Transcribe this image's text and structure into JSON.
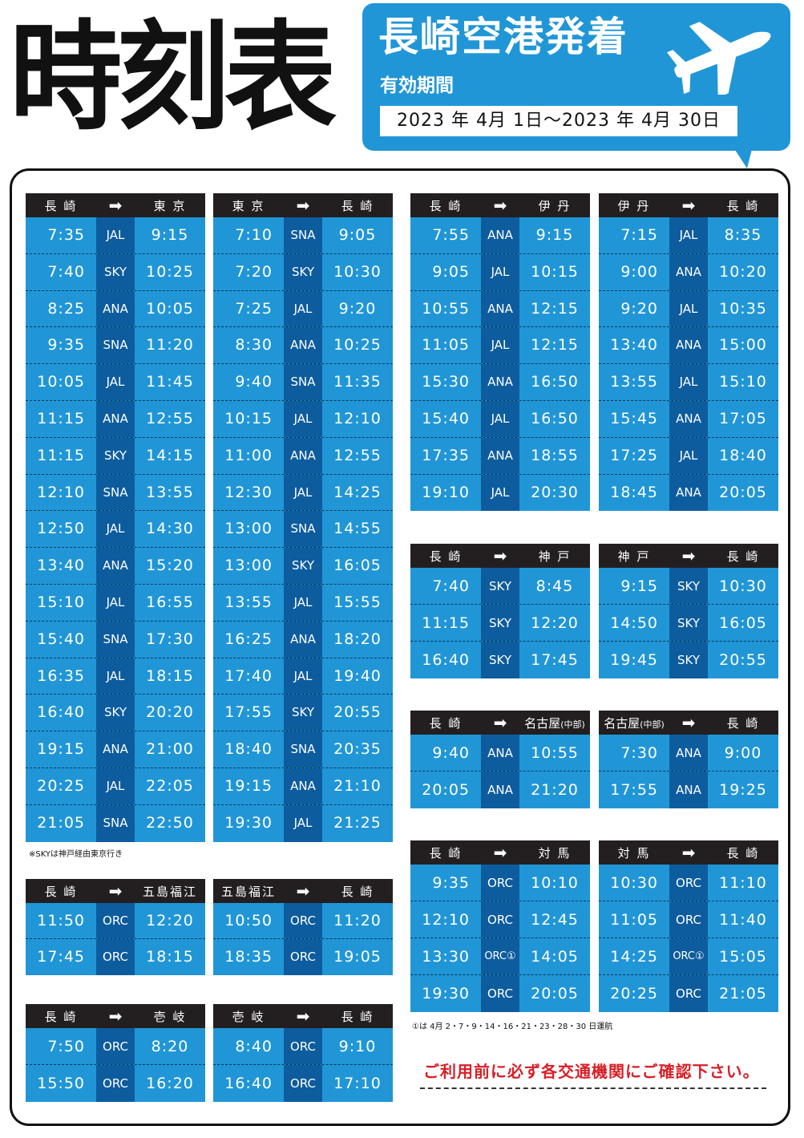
{
  "header": {
    "title": "時刻表",
    "airport_title": "長崎空港発着",
    "period_label": "有効期間",
    "period": "2023 年 4月 1日～2023 年 4月 30日",
    "icon": "airplane-icon"
  },
  "colors": {
    "row_bg": "#2196d6",
    "airline_col": "#0d5c9e",
    "head_bg": "#231f20",
    "warn": "#d81f26"
  },
  "arrow": "➡",
  "tables": [
    {
      "from": "長 崎",
      "to": "東 京",
      "rows": [
        {
          "dep": "7:35",
          "airline": "JAL",
          "arr": "9:15"
        },
        {
          "dep": "7:40",
          "airline": "SKY",
          "arr": "10:25"
        },
        {
          "dep": "8:25",
          "airline": "ANA",
          "arr": "10:05"
        },
        {
          "dep": "9:35",
          "airline": "SNA",
          "arr": "11:20"
        },
        {
          "dep": "10:05",
          "airline": "JAL",
          "arr": "11:45"
        },
        {
          "dep": "11:15",
          "airline": "ANA",
          "arr": "12:55"
        },
        {
          "dep": "11:15",
          "airline": "SKY",
          "arr": "14:15"
        },
        {
          "dep": "12:10",
          "airline": "SNA",
          "arr": "13:55"
        },
        {
          "dep": "12:50",
          "airline": "JAL",
          "arr": "14:30"
        },
        {
          "dep": "13:40",
          "airline": "ANA",
          "arr": "15:20"
        },
        {
          "dep": "15:10",
          "airline": "JAL",
          "arr": "16:55"
        },
        {
          "dep": "15:40",
          "airline": "SNA",
          "arr": "17:30"
        },
        {
          "dep": "16:35",
          "airline": "JAL",
          "arr": "18:15"
        },
        {
          "dep": "16:40",
          "airline": "SKY",
          "arr": "20:20"
        },
        {
          "dep": "19:15",
          "airline": "ANA",
          "arr": "21:00"
        },
        {
          "dep": "20:25",
          "airline": "JAL",
          "arr": "22:05"
        },
        {
          "dep": "21:05",
          "airline": "SNA",
          "arr": "22:50"
        }
      ]
    },
    {
      "from": "東 京",
      "to": "長 崎",
      "rows": [
        {
          "dep": "7:10",
          "airline": "SNA",
          "arr": "9:05"
        },
        {
          "dep": "7:20",
          "airline": "SKY",
          "arr": "10:30"
        },
        {
          "dep": "7:25",
          "airline": "JAL",
          "arr": "9:20"
        },
        {
          "dep": "8:30",
          "airline": "ANA",
          "arr": "10:25"
        },
        {
          "dep": "9:40",
          "airline": "SNA",
          "arr": "11:35"
        },
        {
          "dep": "10:15",
          "airline": "JAL",
          "arr": "12:10"
        },
        {
          "dep": "11:00",
          "airline": "ANA",
          "arr": "12:55"
        },
        {
          "dep": "12:30",
          "airline": "JAL",
          "arr": "14:25"
        },
        {
          "dep": "13:00",
          "airline": "SNA",
          "arr": "14:55"
        },
        {
          "dep": "13:00",
          "airline": "SKY",
          "arr": "16:05"
        },
        {
          "dep": "13:55",
          "airline": "JAL",
          "arr": "15:55"
        },
        {
          "dep": "16:25",
          "airline": "ANA",
          "arr": "18:20"
        },
        {
          "dep": "17:40",
          "airline": "JAL",
          "arr": "19:40"
        },
        {
          "dep": "17:55",
          "airline": "SKY",
          "arr": "20:55"
        },
        {
          "dep": "18:40",
          "airline": "SNA",
          "arr": "20:35"
        },
        {
          "dep": "19:15",
          "airline": "ANA",
          "arr": "21:10"
        },
        {
          "dep": "19:30",
          "airline": "JAL",
          "arr": "21:25"
        }
      ]
    },
    {
      "from": "長 崎",
      "to": "伊 丹",
      "rows": [
        {
          "dep": "7:55",
          "airline": "ANA",
          "arr": "9:15"
        },
        {
          "dep": "9:05",
          "airline": "JAL",
          "arr": "10:15"
        },
        {
          "dep": "10:55",
          "airline": "ANA",
          "arr": "12:15"
        },
        {
          "dep": "11:05",
          "airline": "JAL",
          "arr": "12:15"
        },
        {
          "dep": "15:30",
          "airline": "ANA",
          "arr": "16:50"
        },
        {
          "dep": "15:40",
          "airline": "JAL",
          "arr": "16:50"
        },
        {
          "dep": "17:35",
          "airline": "ANA",
          "arr": "18:55"
        },
        {
          "dep": "19:10",
          "airline": "JAL",
          "arr": "20:30"
        }
      ]
    },
    {
      "from": "伊 丹",
      "to": "長 崎",
      "rows": [
        {
          "dep": "7:15",
          "airline": "JAL",
          "arr": "8:35"
        },
        {
          "dep": "9:00",
          "airline": "ANA",
          "arr": "10:20"
        },
        {
          "dep": "9:20",
          "airline": "JAL",
          "arr": "10:35"
        },
        {
          "dep": "13:40",
          "airline": "ANA",
          "arr": "15:00"
        },
        {
          "dep": "13:55",
          "airline": "JAL",
          "arr": "15:10"
        },
        {
          "dep": "15:45",
          "airline": "ANA",
          "arr": "17:05"
        },
        {
          "dep": "17:25",
          "airline": "JAL",
          "arr": "18:40"
        },
        {
          "dep": "18:45",
          "airline": "ANA",
          "arr": "20:05"
        }
      ]
    },
    {
      "from": "長 崎",
      "to": "神 戸",
      "rows": [
        {
          "dep": "7:40",
          "airline": "SKY",
          "arr": "8:45"
        },
        {
          "dep": "11:15",
          "airline": "SKY",
          "arr": "12:20"
        },
        {
          "dep": "16:40",
          "airline": "SKY",
          "arr": "17:45"
        }
      ]
    },
    {
      "from": "神 戸",
      "to": "長 崎",
      "rows": [
        {
          "dep": "9:15",
          "airline": "SKY",
          "arr": "10:30"
        },
        {
          "dep": "14:50",
          "airline": "SKY",
          "arr": "16:05"
        },
        {
          "dep": "19:45",
          "airline": "SKY",
          "arr": "20:55"
        }
      ]
    },
    {
      "from": "長 崎",
      "to": "名古屋",
      "to_sub": "(中部)",
      "rows": [
        {
          "dep": "9:40",
          "airline": "ANA",
          "arr": "10:55"
        },
        {
          "dep": "20:05",
          "airline": "ANA",
          "arr": "21:20"
        }
      ]
    },
    {
      "from": "名古屋",
      "from_sub": "(中部)",
      "to": "長 崎",
      "rows": [
        {
          "dep": "7:30",
          "airline": "ANA",
          "arr": "9:00"
        },
        {
          "dep": "17:55",
          "airline": "ANA",
          "arr": "19:25"
        }
      ]
    },
    {
      "from": "長 崎",
      "to": "対 馬",
      "rows": [
        {
          "dep": "9:35",
          "airline": "ORC",
          "arr": "10:10"
        },
        {
          "dep": "12:10",
          "airline": "ORC",
          "arr": "12:45"
        },
        {
          "dep": "13:30",
          "airline": "ORC①",
          "arr": "14:05"
        },
        {
          "dep": "19:30",
          "airline": "ORC",
          "arr": "20:05"
        }
      ]
    },
    {
      "from": "対 馬",
      "to": "長 崎",
      "rows": [
        {
          "dep": "10:30",
          "airline": "ORC",
          "arr": "11:10"
        },
        {
          "dep": "11:05",
          "airline": "ORC",
          "arr": "11:40"
        },
        {
          "dep": "14:25",
          "airline": "ORC①",
          "arr": "15:05"
        },
        {
          "dep": "20:25",
          "airline": "ORC",
          "arr": "21:05"
        }
      ]
    },
    {
      "from": "長 崎",
      "to": "五島福江",
      "rows": [
        {
          "dep": "11:50",
          "airline": "ORC",
          "arr": "12:20"
        },
        {
          "dep": "17:45",
          "airline": "ORC",
          "arr": "18:15"
        }
      ]
    },
    {
      "from": "五島福江",
      "to": "長 崎",
      "rows": [
        {
          "dep": "10:50",
          "airline": "ORC",
          "arr": "11:20"
        },
        {
          "dep": "18:35",
          "airline": "ORC",
          "arr": "19:05"
        }
      ]
    },
    {
      "from": "長 崎",
      "to": "壱 岐",
      "rows": [
        {
          "dep": "7:50",
          "airline": "ORC",
          "arr": "8:20"
        },
        {
          "dep": "15:50",
          "airline": "ORC",
          "arr": "16:20"
        }
      ]
    },
    {
      "from": "壱 岐",
      "to": "長 崎",
      "rows": [
        {
          "dep": "8:40",
          "airline": "ORC",
          "arr": "9:10"
        },
        {
          "dep": "16:40",
          "airline": "ORC",
          "arr": "17:10"
        }
      ]
    }
  ],
  "notes": {
    "sky": "※SKYは神戸経由東京行き",
    "orc": "①は 4月 2・7・9・14・16・21・23・28・30 日運航",
    "warning": "ご利用前に必ず各交通機関にご確認下さい。"
  }
}
